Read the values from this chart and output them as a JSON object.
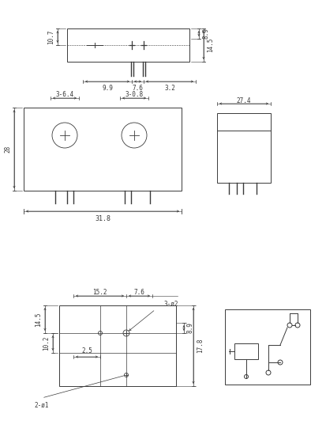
{
  "bg_color": "#ffffff",
  "line_color": "#3a3a3a",
  "fontsize": 5.5,
  "lw": 0.7,
  "fig_width": 4.13,
  "fig_height": 5.46,
  "dpi": 100
}
